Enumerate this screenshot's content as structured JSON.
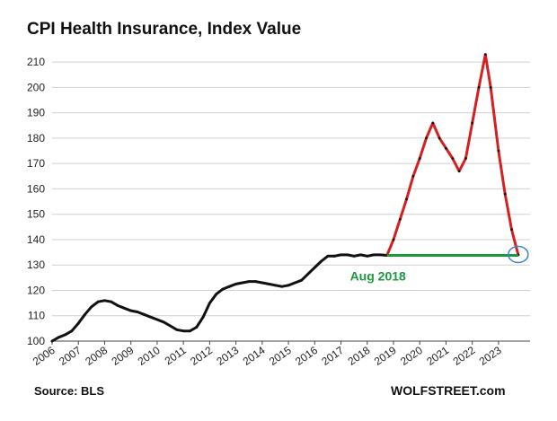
{
  "chart_data": {
    "type": "line",
    "title": "CPI Health Insurance, Index Value",
    "source": "Source: BLS",
    "brand": "WOLFSTREET.com",
    "xlim": [
      2006.0,
      2024.2
    ],
    "ylim": [
      100,
      215
    ],
    "y_ticks": [
      100,
      110,
      120,
      130,
      140,
      150,
      160,
      170,
      180,
      190,
      200,
      210
    ],
    "x_ticks": [
      2006,
      2007,
      2008,
      2009,
      2010,
      2011,
      2012,
      2013,
      2014,
      2015,
      2016,
      2017,
      2018,
      2019,
      2020,
      2021,
      2022,
      2023
    ],
    "grid": "horizontal",
    "colors": {
      "series_before": "#111111",
      "series_after": "#d42020",
      "reference": "#1a9a3c",
      "grid": "#d0d0d0"
    },
    "series": [
      {
        "x": [
          2006.0,
          2006.25,
          2006.5,
          2006.75,
          2007.0,
          2007.25,
          2007.5,
          2007.75,
          2008.0,
          2008.25,
          2008.5,
          2008.75,
          2009.0,
          2009.25,
          2009.5,
          2009.75,
          2010.0,
          2010.25,
          2010.5,
          2010.75,
          2011.0,
          2011.25,
          2011.5,
          2011.75,
          2012.0,
          2012.25,
          2012.5,
          2012.75,
          2013.0,
          2013.25,
          2013.5,
          2013.75,
          2014.0,
          2014.25,
          2014.5,
          2014.75,
          2015.0,
          2015.25,
          2015.5,
          2015.75,
          2016.0,
          2016.25,
          2016.5,
          2016.75,
          2017.0,
          2017.25,
          2017.5,
          2017.75,
          2018.0,
          2018.25,
          2018.5,
          2018.75
        ],
        "values": [
          100.0,
          101.5,
          102.5,
          104.0,
          107.0,
          110.5,
          113.5,
          115.5,
          116.0,
          115.5,
          114.0,
          113.0,
          112.0,
          111.5,
          110.5,
          109.5,
          108.5,
          107.5,
          106.0,
          104.5,
          104.0,
          104.0,
          105.5,
          109.5,
          115.0,
          118.5,
          120.5,
          121.5,
          122.5,
          123.0,
          123.5,
          123.5,
          123.0,
          122.5,
          122.0,
          121.5,
          122.0,
          123.0,
          124.0,
          126.5,
          129.0,
          131.5,
          133.5,
          133.5,
          134.0,
          134.0,
          133.5,
          134.0,
          133.5,
          134.0,
          134.0,
          133.8
        ]
      },
      {
        "x": [
          2018.75,
          2019.0,
          2019.25,
          2019.5,
          2019.75,
          2020.0,
          2020.25,
          2020.5,
          2020.75,
          2021.0,
          2021.25,
          2021.5,
          2021.75,
          2022.0,
          2022.25,
          2022.5,
          2022.7,
          2023.0,
          2023.25,
          2023.5,
          2023.75
        ],
        "values": [
          133.8,
          140.0,
          148.0,
          156.0,
          165.0,
          172.0,
          180.0,
          186.0,
          180.0,
          176.0,
          172.0,
          167.0,
          172.0,
          186.0,
          200.0,
          213.0,
          200.0,
          175.0,
          158.0,
          144.0,
          134.0
        ]
      }
    ],
    "reference_line": {
      "y": 133.8,
      "x_start": 2018.75,
      "x_end": 2023.75,
      "label": "Aug 2018"
    }
  }
}
